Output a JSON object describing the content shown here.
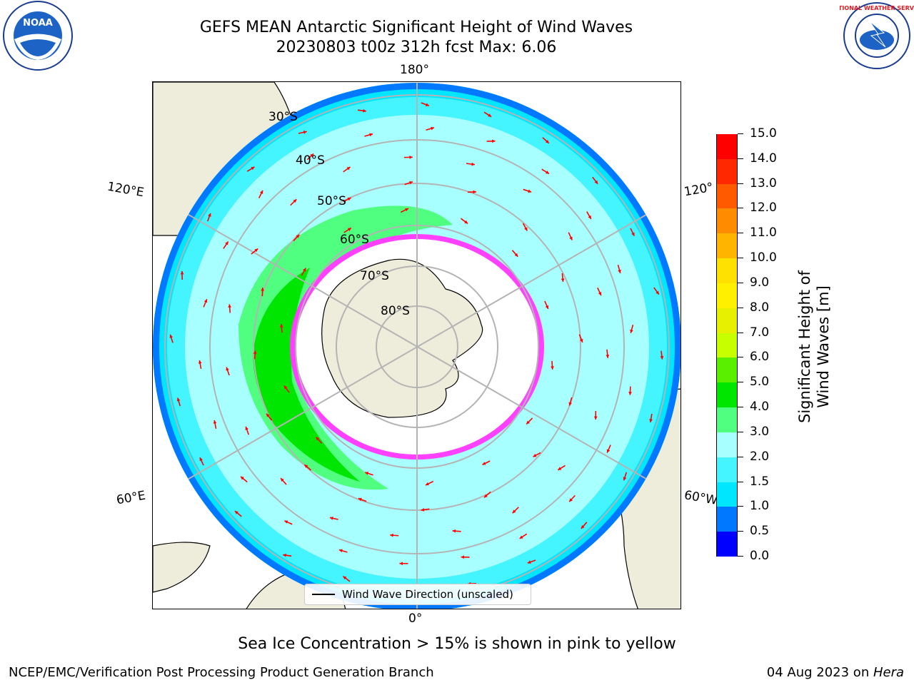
{
  "title": {
    "line1": "GEFS MEAN Antarctic Significant Height of Wind Waves",
    "line2": "20230803 t00z 312h fcst   Max: 6.06"
  },
  "map": {
    "projection": "south-polar-stereographic",
    "lon_labels": {
      "top": "180°",
      "bottom": "0°",
      "left_upper": "120°E",
      "left_lower": "60°E",
      "right_upper": "120°",
      "right_lower": "60°W"
    },
    "lat_labels": [
      "30°S",
      "40°S",
      "50°S",
      "60°S",
      "70°S",
      "80°S"
    ],
    "legend": "Wind Wave Direction (unscaled)",
    "colors": {
      "land": "#eeecda",
      "ice": "#ffffff",
      "grid": "#b4b4b4",
      "arrow": "#ff0000",
      "sea_ice_edge": "#ff40ff"
    }
  },
  "colorbar": {
    "label": "Significant Height of Wind Waves [m]",
    "ticks": [
      "0.0",
      "0.5",
      "1.0",
      "1.5",
      "2.0",
      "3.0",
      "4.0",
      "5.0",
      "6.0",
      "7.0",
      "8.0",
      "9.0",
      "10.0",
      "11.0",
      "12.0",
      "13.0",
      "14.0",
      "15.0"
    ],
    "colors": [
      "#0000ff",
      "#0078ff",
      "#00e6ff",
      "#44f4ff",
      "#a8ffff",
      "#50ff80",
      "#00e600",
      "#5aee00",
      "#c8ff00",
      "#e6f000",
      "#fff000",
      "#ffe100",
      "#ffb400",
      "#ff8c00",
      "#ff5a00",
      "#ff2800",
      "#ff0000"
    ]
  },
  "footnote": "Sea Ice Concentration > 15% is shown in pink to yellow",
  "credit": "NCEP/EMC/Verification Post Processing Product Generation Branch",
  "date": "04 Aug 2023 on ",
  "host": "Hera",
  "logos": {
    "left": "NOAA",
    "right": "NATIONAL WEATHER SERVICE"
  }
}
